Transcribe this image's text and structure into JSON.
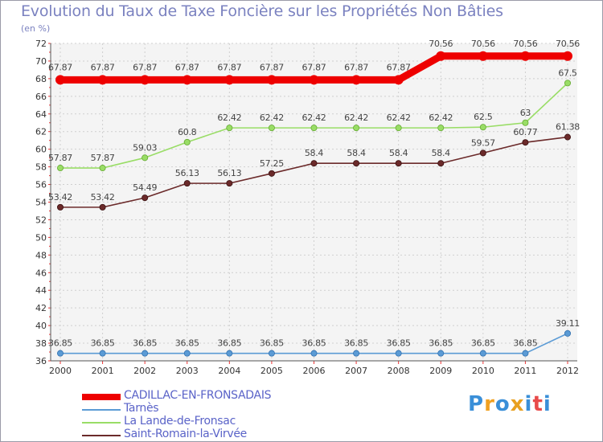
{
  "chart_data": {
    "type": "line",
    "title": "Evolution du Taux de Taxe Foncière sur les Propriétés Non Bâties",
    "subtitle": "(en %)",
    "categories": [
      "2000",
      "2001",
      "2002",
      "2003",
      "2004",
      "2005",
      "2006",
      "2007",
      "2008",
      "2009",
      "2010",
      "2011",
      "2012"
    ],
    "ylim": [
      36,
      72
    ],
    "ytick_step": 2,
    "yticks": [
      "36",
      "38",
      "40",
      "42",
      "44",
      "46",
      "48",
      "50",
      "52",
      "54",
      "56",
      "58",
      "60",
      "62",
      "64",
      "66",
      "68",
      "70",
      "72"
    ],
    "series": [
      {
        "name": "CADILLAC-EN-FRONSADAIS",
        "color": "#ee0000",
        "values": [
          67.87,
          67.87,
          67.87,
          67.87,
          67.87,
          67.87,
          67.87,
          67.87,
          67.87,
          70.56,
          70.56,
          70.56,
          70.56
        ],
        "labels": [
          "67.87",
          "67.87",
          "67.87",
          "67.87",
          "67.87",
          "67.87",
          "67.87",
          "67.87",
          "67.87",
          "70.56",
          "70.56",
          "70.56",
          "70.56"
        ]
      },
      {
        "name": "Tarnès",
        "color": "#5b9bd5",
        "values": [
          36.85,
          36.85,
          36.85,
          36.85,
          36.85,
          36.85,
          36.85,
          36.85,
          36.85,
          36.85,
          36.85,
          36.85,
          39.11
        ],
        "labels": [
          "36.85",
          "36.85",
          "36.85",
          "36.85",
          "36.85",
          "36.85",
          "36.85",
          "36.85",
          "36.85",
          "36.85",
          "36.85",
          "36.85",
          "39.11"
        ]
      },
      {
        "name": "La Lande-de-Fronsac",
        "color": "#99dd66",
        "values": [
          57.87,
          57.87,
          59.03,
          60.8,
          62.42,
          62.42,
          62.42,
          62.42,
          62.42,
          62.42,
          62.5,
          63,
          67.5
        ],
        "labels": [
          "57.87",
          "57.87",
          "59.03",
          "60.8",
          "62.42",
          "62.42",
          "62.42",
          "62.42",
          "62.42",
          "62.42",
          "62.5",
          "63",
          "67.5"
        ]
      },
      {
        "name": "Saint-Romain-la-Virvée",
        "color": "#6b2a2a",
        "values": [
          53.42,
          53.42,
          54.49,
          56.13,
          56.13,
          57.25,
          58.4,
          58.4,
          58.4,
          58.4,
          59.57,
          60.77,
          61.38
        ],
        "labels": [
          "53.42",
          "53.42",
          "54.49",
          "56.13",
          "56.13",
          "57.25",
          "58.4",
          "58.4",
          "58.4",
          "58.4",
          "59.57",
          "60.77",
          "61.38"
        ]
      }
    ]
  },
  "logo": {
    "letters": [
      "P",
      "r",
      "o",
      "x",
      "i",
      "t",
      "i"
    ],
    "colors": [
      "#3a8fd8",
      "#f0a020",
      "#3a8fd8",
      "#e8a020",
      "#3a8fd8",
      "#e84a4a",
      "#3a8fd8"
    ]
  }
}
